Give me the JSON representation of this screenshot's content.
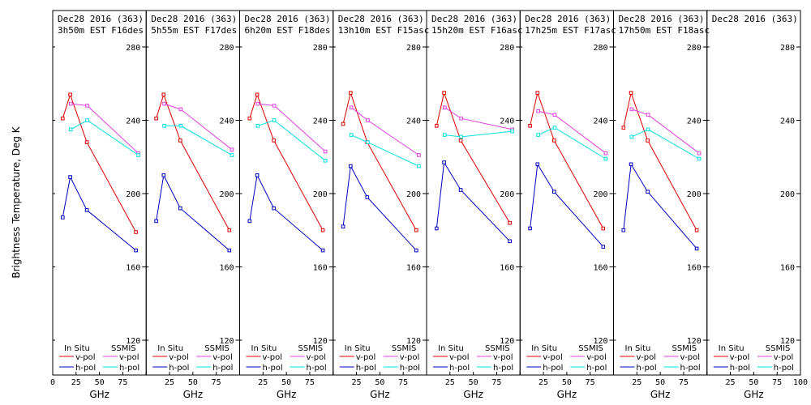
{
  "chart_data": {
    "type": "line",
    "ylabel": "Brightness Temperature, Deg K",
    "xlabel": "GHz",
    "xlim": [
      0,
      100
    ],
    "ylim": [
      110,
      290
    ],
    "xticks": [
      0,
      25,
      50,
      75,
      100
    ],
    "xtick_labels": [
      "0",
      "25",
      "50",
      "75",
      "100"
    ],
    "yticks": [
      120,
      160,
      200,
      240,
      280
    ],
    "ytick_labels": [
      "120",
      "160",
      "200",
      "240",
      "280"
    ],
    "legend": {
      "in_situ_header": "In Situ",
      "ssmis_header": "SSMIS",
      "vpol": "v-pol",
      "hpol": "h-pol"
    },
    "colors": {
      "insitu_v": "#e00000",
      "insitu_h": "#0000c0",
      "ssmis_v": "#e040e0",
      "ssmis_h": "#00e0e0"
    },
    "panels": [
      {
        "title_line1": "Dec28 2016 (363)",
        "title_line2": "3h50m EST F16des",
        "insitu_v": {
          "x": [
            10.7,
            18.7,
            36.5,
            89
          ],
          "y": [
            241,
            254,
            228,
            179
          ]
        },
        "insitu_h": {
          "x": [
            10.7,
            18.7,
            36.5,
            89
          ],
          "y": [
            187,
            209,
            191,
            169
          ]
        },
        "ssmis_v": {
          "x": [
            19.35,
            37,
            91.655
          ],
          "y": [
            249,
            248,
            222
          ]
        },
        "ssmis_h": {
          "x": [
            19.35,
            37,
            91.655
          ],
          "y": [
            235,
            240,
            221
          ]
        }
      },
      {
        "title_line1": "Dec28 2016 (363)",
        "title_line2": "5h55m EST F17des",
        "insitu_v": {
          "x": [
            10.7,
            18.7,
            36.5,
            89
          ],
          "y": [
            241,
            254,
            229,
            180
          ]
        },
        "insitu_h": {
          "x": [
            10.7,
            18.7,
            36.5,
            89
          ],
          "y": [
            185,
            210,
            192,
            169
          ]
        },
        "ssmis_v": {
          "x": [
            19.35,
            37,
            91.655
          ],
          "y": [
            249,
            246,
            224
          ]
        },
        "ssmis_h": {
          "x": [
            19.35,
            37,
            91.655
          ],
          "y": [
            237,
            237,
            221
          ]
        }
      },
      {
        "title_line1": "Dec28 2016 (363)",
        "title_line2": "6h20m EST F18des",
        "insitu_v": {
          "x": [
            10.7,
            18.7,
            36.5,
            89
          ],
          "y": [
            241,
            254,
            229,
            180
          ]
        },
        "insitu_h": {
          "x": [
            10.7,
            18.7,
            36.5,
            89
          ],
          "y": [
            185,
            210,
            192,
            169
          ]
        },
        "ssmis_v": {
          "x": [
            19.35,
            37,
            91.655
          ],
          "y": [
            249,
            248,
            223
          ]
        },
        "ssmis_h": {
          "x": [
            19.35,
            37,
            91.655
          ],
          "y": [
            237,
            240,
            218
          ]
        }
      },
      {
        "title_line1": "Dec28 2016 (363)",
        "title_line2": "13h10m EST F15asc",
        "insitu_v": {
          "x": [
            10.7,
            18.7,
            36.5,
            89
          ],
          "y": [
            238,
            255,
            228,
            180
          ]
        },
        "insitu_h": {
          "x": [
            10.7,
            18.7,
            36.5,
            89
          ],
          "y": [
            182,
            215,
            198,
            169
          ]
        },
        "ssmis_v": {
          "x": [
            19.35,
            37,
            91.655
          ],
          "y": [
            247,
            240,
            221
          ]
        },
        "ssmis_h": {
          "x": [
            19.35,
            37,
            91.655
          ],
          "y": [
            232,
            228,
            215
          ]
        }
      },
      {
        "title_line1": "Dec28 2016 (363)",
        "title_line2": "15h20m EST F16asc",
        "insitu_v": {
          "x": [
            10.7,
            18.7,
            36.5,
            89
          ],
          "y": [
            237,
            255,
            229,
            184
          ]
        },
        "insitu_h": {
          "x": [
            10.7,
            18.7,
            36.5,
            89
          ],
          "y": [
            181,
            217,
            202,
            174
          ]
        },
        "ssmis_v": {
          "x": [
            19.35,
            37,
            91.655
          ],
          "y": [
            247,
            241,
            235
          ]
        },
        "ssmis_h": {
          "x": [
            19.35,
            37,
            91.655
          ],
          "y": [
            232,
            231,
            234
          ]
        }
      },
      {
        "title_line1": "Dec28 2016 (363)",
        "title_line2": "17h25m EST F17asc",
        "insitu_v": {
          "x": [
            10.7,
            18.7,
            36.5,
            89
          ],
          "y": [
            237,
            255,
            229,
            181
          ]
        },
        "insitu_h": {
          "x": [
            10.7,
            18.7,
            36.5,
            89
          ],
          "y": [
            181,
            216,
            201,
            171
          ]
        },
        "ssmis_v": {
          "x": [
            19.35,
            37,
            91.655
          ],
          "y": [
            245,
            243,
            222
          ]
        },
        "ssmis_h": {
          "x": [
            19.35,
            37,
            91.655
          ],
          "y": [
            232,
            236,
            219
          ]
        }
      },
      {
        "title_line1": "Dec28 2016 (363)",
        "title_line2": "17h50m EST F18asc",
        "insitu_v": {
          "x": [
            10.7,
            18.7,
            36.5,
            89
          ],
          "y": [
            236,
            255,
            229,
            180
          ]
        },
        "insitu_h": {
          "x": [
            10.7,
            18.7,
            36.5,
            89
          ],
          "y": [
            180,
            216,
            201,
            170
          ]
        },
        "ssmis_v": {
          "x": [
            19.35,
            37,
            91.655
          ],
          "y": [
            246,
            243,
            222
          ]
        },
        "ssmis_h": {
          "x": [
            19.35,
            37,
            91.655
          ],
          "y": [
            231,
            235,
            219
          ]
        }
      },
      {
        "title_line1": "Dec28 2016 (363)",
        "title_line2": "",
        "insitu_v": {
          "x": [],
          "y": []
        },
        "insitu_h": {
          "x": [],
          "y": []
        },
        "ssmis_v": {
          "x": [],
          "y": []
        },
        "ssmis_h": {
          "x": [],
          "y": []
        }
      }
    ]
  }
}
